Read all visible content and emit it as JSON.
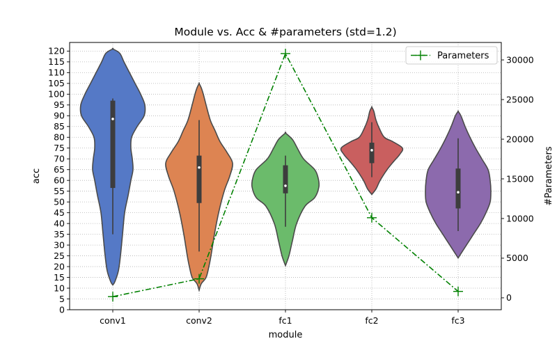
{
  "chart_data": {
    "type": "violin",
    "title": "Module vs. Acc & #parameters (std=1.2)",
    "xlabel": "module",
    "ylabel": "acc",
    "y2label": "#Parameters",
    "categories": [
      "conv1",
      "conv2",
      "fc1",
      "fc2",
      "fc3"
    ],
    "ylim": [
      0,
      124
    ],
    "yticks": [
      0,
      5,
      10,
      15,
      20,
      25,
      30,
      35,
      40,
      45,
      50,
      55,
      60,
      65,
      70,
      75,
      80,
      85,
      90,
      95,
      100,
      105,
      110,
      115,
      120
    ],
    "y2lim": [
      -1500,
      32200
    ],
    "y2ticks": [
      0,
      5000,
      10000,
      15000,
      20000,
      25000,
      30000
    ],
    "grid": true,
    "violins": [
      {
        "category": "conv1",
        "color": "#5579c6",
        "median": 88.5,
        "q1": 56.5,
        "q3": 97,
        "whisker_low": 35,
        "whisker_high": 98,
        "density": [
          [
            11.5,
            0
          ],
          [
            13,
            3
          ],
          [
            18,
            8
          ],
          [
            25,
            11
          ],
          [
            35,
            14
          ],
          [
            45,
            17
          ],
          [
            53,
            22
          ],
          [
            60,
            26
          ],
          [
            65,
            29
          ],
          [
            70,
            28
          ],
          [
            75,
            26
          ],
          [
            80,
            27
          ],
          [
            85,
            35
          ],
          [
            90,
            45
          ],
          [
            95,
            46
          ],
          [
            100,
            40
          ],
          [
            105,
            32
          ],
          [
            110,
            24
          ],
          [
            115,
            16
          ],
          [
            119,
            10
          ],
          [
            121,
            0
          ]
        ]
      },
      {
        "category": "conv2",
        "color": "#dd8452",
        "median": 66,
        "q1": 49.5,
        "q3": 71.5,
        "whisker_low": 27,
        "whisker_high": 88,
        "density": [
          [
            9,
            0
          ],
          [
            12,
            3
          ],
          [
            15,
            10
          ],
          [
            20,
            14
          ],
          [
            25,
            17
          ],
          [
            35,
            22
          ],
          [
            45,
            28
          ],
          [
            55,
            36
          ],
          [
            62,
            44
          ],
          [
            68,
            48
          ],
          [
            73,
            40
          ],
          [
            78,
            30
          ],
          [
            83,
            23
          ],
          [
            88,
            16
          ],
          [
            95,
            10
          ],
          [
            100,
            6
          ],
          [
            103,
            3
          ],
          [
            105,
            0
          ]
        ]
      },
      {
        "category": "fc1",
        "color": "#6bbb6b",
        "median": 57.5,
        "q1": 54,
        "q3": 67,
        "whisker_low": 38.5,
        "whisker_high": 71.5,
        "density": [
          [
            20.5,
            0
          ],
          [
            25,
            5
          ],
          [
            32,
            10
          ],
          [
            40,
            16
          ],
          [
            48,
            28
          ],
          [
            52,
            42
          ],
          [
            57,
            48
          ],
          [
            61,
            47
          ],
          [
            65,
            42
          ],
          [
            70,
            26
          ],
          [
            75,
            17
          ],
          [
            79,
            10
          ],
          [
            82,
            0
          ]
        ]
      },
      {
        "category": "fc2",
        "color": "#c95f5f",
        "median": 74,
        "q1": 68,
        "q3": 77.5,
        "whisker_low": 61.5,
        "whisker_high": 87,
        "density": [
          [
            53.5,
            0
          ],
          [
            56,
            6
          ],
          [
            60,
            12
          ],
          [
            65,
            22
          ],
          [
            69,
            32
          ],
          [
            72,
            40
          ],
          [
            75,
            44
          ],
          [
            78,
            30
          ],
          [
            80,
            18
          ],
          [
            84,
            11
          ],
          [
            88,
            6
          ],
          [
            92,
            3
          ],
          [
            94,
            0
          ]
        ]
      },
      {
        "category": "fc3",
        "color": "#8c6aad",
        "median": 54.5,
        "q1": 47,
        "q3": 65.5,
        "whisker_low": 36.5,
        "whisker_high": 79.5,
        "density": [
          [
            24,
            0
          ],
          [
            26,
            4
          ],
          [
            30,
            12
          ],
          [
            35,
            22
          ],
          [
            40,
            32
          ],
          [
            45,
            40
          ],
          [
            50,
            46
          ],
          [
            55,
            47
          ],
          [
            60,
            46
          ],
          [
            65,
            43
          ],
          [
            70,
            34
          ],
          [
            75,
            25
          ],
          [
            80,
            17
          ],
          [
            85,
            10
          ],
          [
            90,
            4
          ],
          [
            92,
            0
          ]
        ]
      }
    ],
    "parameters_series": {
      "name": "Parameters",
      "color": "#008000",
      "values": [
        150,
        2400,
        30800,
        10100,
        810
      ]
    },
    "legend_position": "top-right"
  }
}
